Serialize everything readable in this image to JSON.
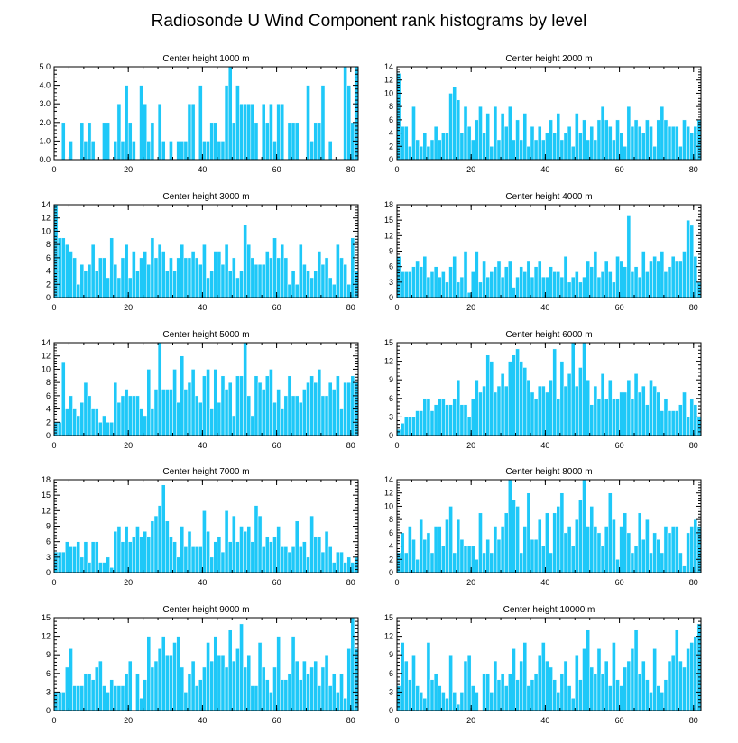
{
  "title": "Radiosonde U Wind Component rank histograms by level",
  "colors": {
    "bar": "#1ec8f8",
    "bar_edge": "#ffffff",
    "frame": "#000000"
  },
  "chart_data": [
    {
      "type": "bar",
      "title": "Center height 1000 m",
      "xlim": [
        0,
        82
      ],
      "xticks": [
        0,
        20,
        40,
        60,
        80
      ],
      "ylim": [
        0,
        5
      ],
      "yticks": [
        0,
        1,
        2,
        3,
        4,
        5
      ],
      "ytick_decimals": 1,
      "values": [
        0,
        0,
        2,
        0,
        1,
        0,
        0,
        2,
        1,
        2,
        1,
        0,
        0,
        2,
        2,
        0,
        1,
        3,
        1,
        4,
        2,
        1,
        0,
        4,
        3,
        1,
        2,
        0,
        3,
        1,
        0,
        1,
        0,
        1,
        1,
        1,
        3,
        3,
        0,
        4,
        1,
        1,
        2,
        2,
        1,
        1,
        4,
        5,
        2,
        4,
        3,
        3,
        3,
        3,
        2,
        0,
        3,
        2,
        3,
        1,
        3,
        3,
        0,
        2,
        2,
        2,
        0,
        0,
        4,
        1,
        2,
        2,
        4,
        0,
        1,
        0,
        0,
        0,
        5,
        4,
        2,
        5
      ]
    },
    {
      "type": "bar",
      "title": "Center height 2000 m",
      "xlim": [
        0,
        82
      ],
      "xticks": [
        0,
        20,
        40,
        60,
        80
      ],
      "ylim": [
        0,
        14
      ],
      "yticks": [
        0,
        2,
        4,
        6,
        8,
        10,
        12,
        14
      ],
      "ytick_decimals": 0,
      "values": [
        13,
        5,
        5,
        2,
        8,
        3,
        2,
        4,
        2,
        3,
        5,
        3,
        4,
        4,
        10,
        11,
        9,
        4,
        8,
        5,
        3,
        6,
        8,
        4,
        7,
        2,
        8,
        3,
        7,
        5,
        8,
        3,
        6,
        3,
        7,
        2,
        5,
        3,
        5,
        3,
        4,
        6,
        4,
        7,
        3,
        4,
        5,
        2,
        7,
        4,
        6,
        3,
        5,
        3,
        6,
        8,
        6,
        5,
        3,
        6,
        4,
        2,
        8,
        5,
        6,
        5,
        4,
        6,
        5,
        2,
        6,
        8,
        6,
        5,
        5,
        5,
        2,
        6,
        5,
        4,
        5,
        6
      ]
    },
    {
      "type": "bar",
      "title": "Center height 3000 m",
      "xlim": [
        0,
        82
      ],
      "xticks": [
        0,
        20,
        40,
        60,
        80
      ],
      "ylim": [
        0,
        14
      ],
      "yticks": [
        0,
        2,
        4,
        6,
        8,
        10,
        12,
        14
      ],
      "ytick_decimals": 0,
      "values": [
        14,
        9,
        9,
        8,
        7,
        6,
        2,
        5,
        4,
        5,
        8,
        4,
        6,
        6,
        3,
        9,
        5,
        3,
        6,
        8,
        3,
        7,
        4,
        6,
        7,
        5,
        9,
        6,
        8,
        7,
        4,
        6,
        4,
        6,
        8,
        6,
        6,
        7,
        6,
        5,
        8,
        3,
        4,
        7,
        7,
        5,
        8,
        4,
        6,
        3,
        4,
        11,
        8,
        6,
        5,
        5,
        5,
        7,
        6,
        9,
        6,
        8,
        6,
        2,
        4,
        2,
        8,
        5,
        4,
        3,
        4,
        7,
        5,
        6,
        3,
        2,
        8,
        6,
        5,
        2,
        9,
        4
      ]
    },
    {
      "type": "bar",
      "title": "Center height 4000 m",
      "xlim": [
        0,
        82
      ],
      "xticks": [
        0,
        20,
        40,
        60,
        80
      ],
      "ylim": [
        0,
        18
      ],
      "yticks": [
        0,
        3,
        6,
        9,
        12,
        15,
        18
      ],
      "ytick_decimals": 0,
      "values": [
        8,
        5,
        5,
        5,
        6,
        7,
        6,
        8,
        4,
        5,
        6,
        4,
        5,
        3,
        6,
        8,
        3,
        4,
        9,
        1,
        5,
        9,
        3,
        7,
        4,
        5,
        6,
        7,
        4,
        6,
        7,
        2,
        4,
        6,
        5,
        7,
        4,
        6,
        7,
        4,
        4,
        6,
        5,
        5,
        4,
        8,
        3,
        4,
        5,
        3,
        4,
        7,
        6,
        9,
        4,
        5,
        7,
        5,
        3,
        8,
        7,
        6,
        16,
        5,
        6,
        4,
        9,
        5,
        7,
        8,
        7,
        9,
        5,
        6,
        8,
        7,
        7,
        9,
        15,
        14,
        8,
        3
      ]
    },
    {
      "type": "bar",
      "title": "Center height 5000 m",
      "xlim": [
        0,
        82
      ],
      "xticks": [
        0,
        20,
        40,
        60,
        80
      ],
      "ylim": [
        0,
        14
      ],
      "yticks": [
        0,
        2,
        4,
        6,
        8,
        10,
        12,
        14
      ],
      "ytick_decimals": 0,
      "values": [
        2,
        2,
        11,
        4,
        6,
        4,
        3,
        5,
        8,
        6,
        4,
        4,
        2,
        3,
        2,
        2,
        8,
        5,
        6,
        7,
        6,
        6,
        6,
        4,
        3,
        10,
        4,
        7,
        14,
        7,
        7,
        7,
        10,
        5,
        12,
        7,
        8,
        10,
        6,
        5,
        9,
        10,
        4,
        10,
        5,
        9,
        7,
        8,
        3,
        9,
        9,
        14,
        6,
        3,
        9,
        8,
        7,
        9,
        10,
        5,
        7,
        4,
        6,
        9,
        6,
        6,
        5,
        7,
        8,
        9,
        8,
        10,
        6,
        6,
        8,
        7,
        9,
        4,
        8,
        8,
        9,
        8
      ]
    },
    {
      "type": "bar",
      "title": "Center height 6000 m",
      "xlim": [
        0,
        82
      ],
      "xticks": [
        0,
        20,
        40,
        60,
        80
      ],
      "ylim": [
        0,
        15
      ],
      "yticks": [
        0,
        3,
        6,
        9,
        12,
        15
      ],
      "ytick_decimals": 0,
      "values": [
        1,
        2,
        3,
        3,
        3,
        4,
        4,
        6,
        6,
        4,
        5,
        6,
        6,
        5,
        5,
        6,
        9,
        5,
        5,
        3,
        6,
        9,
        7,
        8,
        13,
        12,
        7,
        8,
        10,
        8,
        12,
        13,
        14,
        12,
        11,
        9,
        7,
        6,
        8,
        8,
        7,
        9,
        14,
        6,
        12,
        8,
        10,
        15,
        8,
        11,
        15,
        9,
        5,
        8,
        6,
        10,
        6,
        9,
        6,
        6,
        7,
        7,
        9,
        6,
        10,
        7,
        8,
        5,
        9,
        8,
        7,
        4,
        6,
        4,
        4,
        4,
        5,
        7,
        3,
        6,
        5,
        3
      ]
    },
    {
      "type": "bar",
      "title": "Center height 7000 m",
      "xlim": [
        0,
        82
      ],
      "xticks": [
        0,
        20,
        40,
        60,
        80
      ],
      "ylim": [
        0,
        18
      ],
      "yticks": [
        0,
        3,
        6,
        9,
        12,
        15,
        18
      ],
      "ytick_decimals": 0,
      "values": [
        4,
        4,
        4,
        6,
        5,
        5,
        6,
        3,
        6,
        2,
        6,
        6,
        2,
        2,
        3,
        1,
        8,
        9,
        6,
        9,
        6,
        7,
        9,
        7,
        8,
        7,
        10,
        11,
        13,
        17,
        10,
        7,
        6,
        3,
        9,
        5,
        8,
        5,
        5,
        5,
        12,
        8,
        3,
        6,
        7,
        4,
        12,
        6,
        11,
        6,
        9,
        8,
        9,
        6,
        13,
        11,
        5,
        7,
        6,
        7,
        9,
        5,
        5,
        4,
        5,
        10,
        5,
        6,
        3,
        11,
        7,
        7,
        4,
        8,
        5,
        2,
        4,
        4,
        2,
        3,
        2,
        3
      ]
    },
    {
      "type": "bar",
      "title": "Center height 8000 m",
      "xlim": [
        0,
        82
      ],
      "xticks": [
        0,
        20,
        40,
        60,
        80
      ],
      "ylim": [
        0,
        14
      ],
      "yticks": [
        0,
        2,
        4,
        6,
        8,
        10,
        12,
        14
      ],
      "ytick_decimals": 0,
      "values": [
        3,
        6,
        3,
        7,
        5,
        2,
        8,
        5,
        6,
        3,
        7,
        7,
        4,
        8,
        10,
        3,
        8,
        5,
        4,
        4,
        4,
        2,
        9,
        3,
        5,
        3,
        7,
        5,
        7,
        9,
        14,
        11,
        10,
        3,
        7,
        12,
        5,
        5,
        8,
        4,
        9,
        3,
        9,
        10,
        12,
        6,
        7,
        4,
        8,
        11,
        14,
        7,
        10,
        7,
        6,
        4,
        7,
        12,
        8,
        2,
        7,
        9,
        6,
        3,
        4,
        9,
        5,
        8,
        3,
        6,
        5,
        3,
        7,
        6,
        7,
        7,
        3,
        1,
        6,
        7,
        8,
        7
      ]
    },
    {
      "type": "bar",
      "title": "Center height 9000 m",
      "xlim": [
        0,
        82
      ],
      "xticks": [
        0,
        20,
        40,
        60,
        80
      ],
      "ylim": [
        0,
        15
      ],
      "yticks": [
        0,
        3,
        6,
        9,
        12,
        15
      ],
      "ytick_decimals": 0,
      "values": [
        3,
        3,
        3,
        7,
        10,
        4,
        4,
        4,
        6,
        6,
        5,
        7,
        8,
        4,
        3,
        5,
        4,
        4,
        4,
        6,
        8,
        0,
        6,
        2,
        5,
        12,
        7,
        8,
        10,
        12,
        9,
        9,
        11,
        12,
        7,
        3,
        6,
        8,
        4,
        5,
        7,
        11,
        8,
        12,
        9,
        9,
        7,
        13,
        8,
        10,
        14,
        7,
        9,
        4,
        4,
        11,
        7,
        5,
        3,
        7,
        12,
        5,
        5,
        6,
        12,
        8,
        5,
        8,
        6,
        7,
        8,
        4,
        7,
        9,
        4,
        6,
        3,
        6,
        2,
        10,
        15,
        10
      ]
    },
    {
      "type": "bar",
      "title": "Center height 10000 m",
      "xlim": [
        0,
        82
      ],
      "xticks": [
        0,
        20,
        40,
        60,
        80
      ],
      "ylim": [
        0,
        15
      ],
      "yticks": [
        0,
        3,
        6,
        9,
        12,
        15
      ],
      "ytick_decimals": 0,
      "values": [
        4,
        11,
        8,
        5,
        9,
        4,
        3,
        2,
        11,
        5,
        6,
        4,
        3,
        2,
        9,
        3,
        1,
        3,
        8,
        9,
        4,
        3,
        0,
        6,
        6,
        3,
        8,
        5,
        6,
        4,
        6,
        10,
        5,
        8,
        11,
        4,
        5,
        6,
        9,
        11,
        8,
        7,
        5,
        3,
        6,
        8,
        4,
        2,
        9,
        5,
        10,
        13,
        7,
        6,
        10,
        6,
        8,
        4,
        11,
        5,
        4,
        7,
        8,
        10,
        13,
        6,
        8,
        5,
        3,
        10,
        4,
        3,
        5,
        8,
        9,
        13,
        8,
        7,
        10,
        11,
        12,
        14
      ]
    }
  ]
}
